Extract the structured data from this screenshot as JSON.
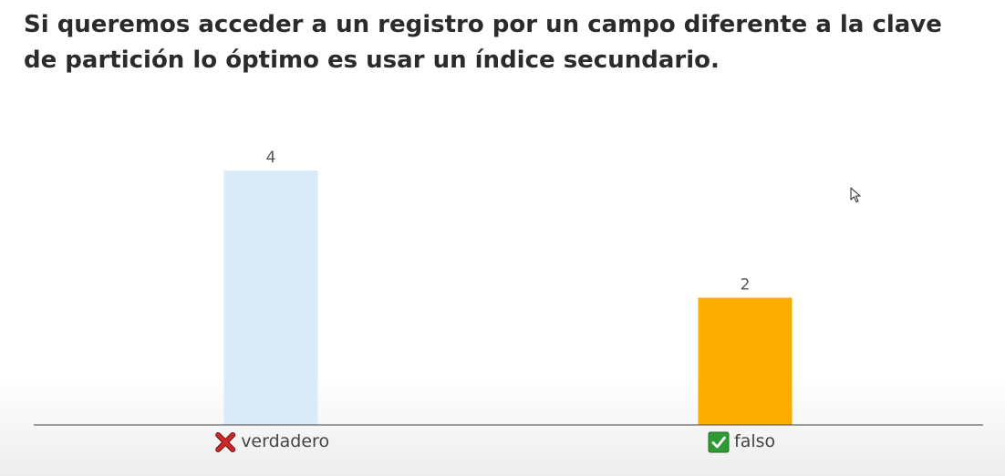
{
  "question": "Si queremos acceder a un registro por un campo diferente a la clave de partición lo óptimo es usar un índice secundario.",
  "chart_data": {
    "type": "bar",
    "categories": [
      "verdadero",
      "falso"
    ],
    "values": [
      4,
      2
    ],
    "correct": [
      false,
      true
    ],
    "colors": [
      "#d9eaf9",
      "#fbac00"
    ],
    "title": "",
    "xlabel": "",
    "ylabel": "",
    "ylim": [
      0,
      4
    ]
  },
  "colors": {
    "axis": "#666666",
    "value_label": "#555555",
    "category_label": "#444444",
    "wrong_mark": "#cc2a2a",
    "correct_mark": "#2e9a33"
  },
  "icons": {
    "wrong": "cross-mark-icon",
    "correct": "check-mark-icon"
  }
}
